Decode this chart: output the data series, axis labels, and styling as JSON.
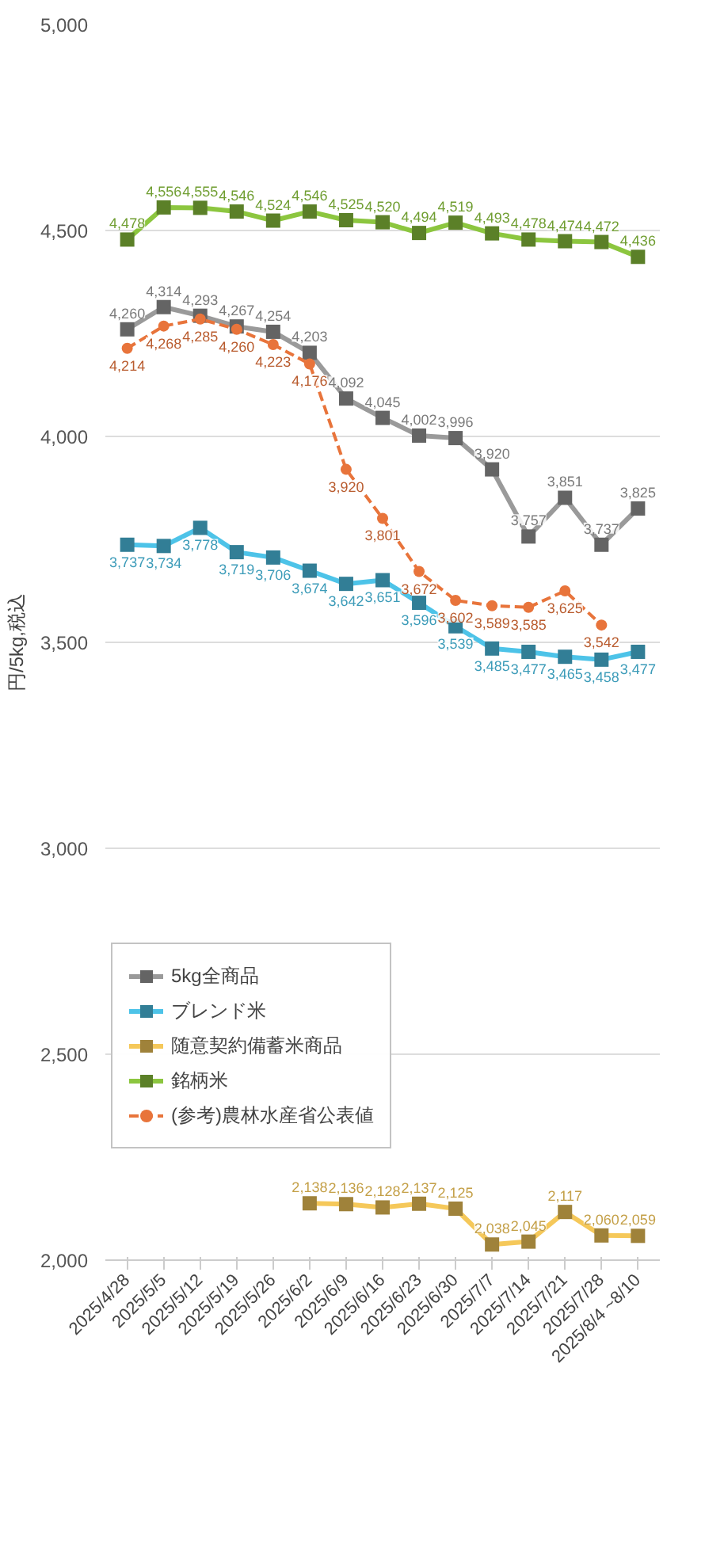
{
  "chart_data": {
    "type": "line",
    "ylabel": "円/5kg,税込",
    "categories": [
      "2025/4/28",
      "2025/5/5",
      "2025/5/12",
      "2025/5/19",
      "2025/5/26",
      "2025/6/2",
      "2025/6/9",
      "2025/6/16",
      "2025/6/23",
      "2025/6/30",
      "2025/7/7",
      "2025/7/14",
      "2025/7/21",
      "2025/7/28",
      "2025/8/4 ~8/10"
    ],
    "series": [
      {
        "name": "5kg全商品",
        "color": "#9a9a9a",
        "marker": "square",
        "values": [
          4260,
          4314,
          4293,
          4267,
          4254,
          4203,
          4092,
          4045,
          4002,
          3996,
          3920,
          3757,
          3851,
          3737,
          3825
        ],
        "value_labels": [
          "4,260",
          "4,314",
          "4,293",
          "4,267",
          "4,254",
          "4,203",
          "4,092",
          "4,045",
          "4,002",
          "3,996",
          "3,920",
          "3,757",
          "3,851",
          "3,737",
          "3,825"
        ]
      },
      {
        "name": "ブレンド米",
        "color": "#4dc3e8",
        "marker": "square",
        "values": [
          3737,
          3734,
          3778,
          3719,
          3706,
          3674,
          3642,
          3651,
          3596,
          3539,
          3485,
          3477,
          3465,
          3458,
          3477
        ],
        "value_labels": [
          "3,737",
          "3,734",
          "3,778",
          "3,719",
          "3,706",
          "3,674",
          "3,642",
          "3,651",
          "3,596",
          "3,539",
          "3,485",
          "3,477",
          "3,465",
          "3,458",
          "3,477"
        ]
      },
      {
        "name": "随意契約備蓄米商品",
        "color": "#f5c85a",
        "marker": "square",
        "values": [
          null,
          null,
          null,
          null,
          null,
          2138,
          2136,
          2128,
          2137,
          2125,
          2038,
          2045,
          2117,
          2060,
          2059
        ],
        "value_labels": [
          null,
          null,
          null,
          null,
          null,
          "2,138",
          "2,136",
          "2,128",
          "2,137",
          "2,125",
          "2,038",
          "2,045",
          "2,117",
          "2,060",
          "2,059"
        ]
      },
      {
        "name": "銘柄米",
        "color": "#8cc63f",
        "marker": "square",
        "values": [
          4478,
          4556,
          4555,
          4546,
          4524,
          4546,
          4525,
          4520,
          4494,
          4519,
          4493,
          4478,
          4474,
          4472,
          4436
        ],
        "value_labels": [
          "4,478",
          "4,556",
          "4,555",
          "4,546",
          "4,524",
          "4,546",
          "4,525",
          "4,520",
          "4,494",
          "4,519",
          "4,493",
          "4,478",
          "4,474",
          "4,472",
          "4,436"
        ]
      },
      {
        "name": "(参考)農林水産省公表値",
        "color": "#e8743b",
        "marker": "circle",
        "line_style": "dashed",
        "values": [
          4214,
          4268,
          4285,
          4260,
          4223,
          4176,
          3920,
          3801,
          3672,
          3602,
          3589,
          3585,
          3625,
          3542,
          null
        ],
        "value_labels": [
          "4,214",
          "4,268",
          "4,285",
          "4,260",
          "4,223",
          "4,176",
          "3,920",
          "3,801",
          "3,672",
          "3,602",
          "3,589",
          "3,585",
          "3,625",
          "3,542",
          null
        ]
      }
    ],
    "ylim": [
      2000,
      5000
    ],
    "yticks": [
      {
        "value": 2000,
        "label": "2,000"
      },
      {
        "value": 2500,
        "label": "2,500"
      },
      {
        "value": 3000,
        "label": "3,000"
      },
      {
        "value": 3500,
        "label": "3,500"
      },
      {
        "value": 4000,
        "label": "4,000"
      },
      {
        "value": 4500,
        "label": "4,500"
      },
      {
        "value": 5000,
        "label": "5,000"
      }
    ],
    "grid": "y",
    "legend": "bottom left"
  }
}
